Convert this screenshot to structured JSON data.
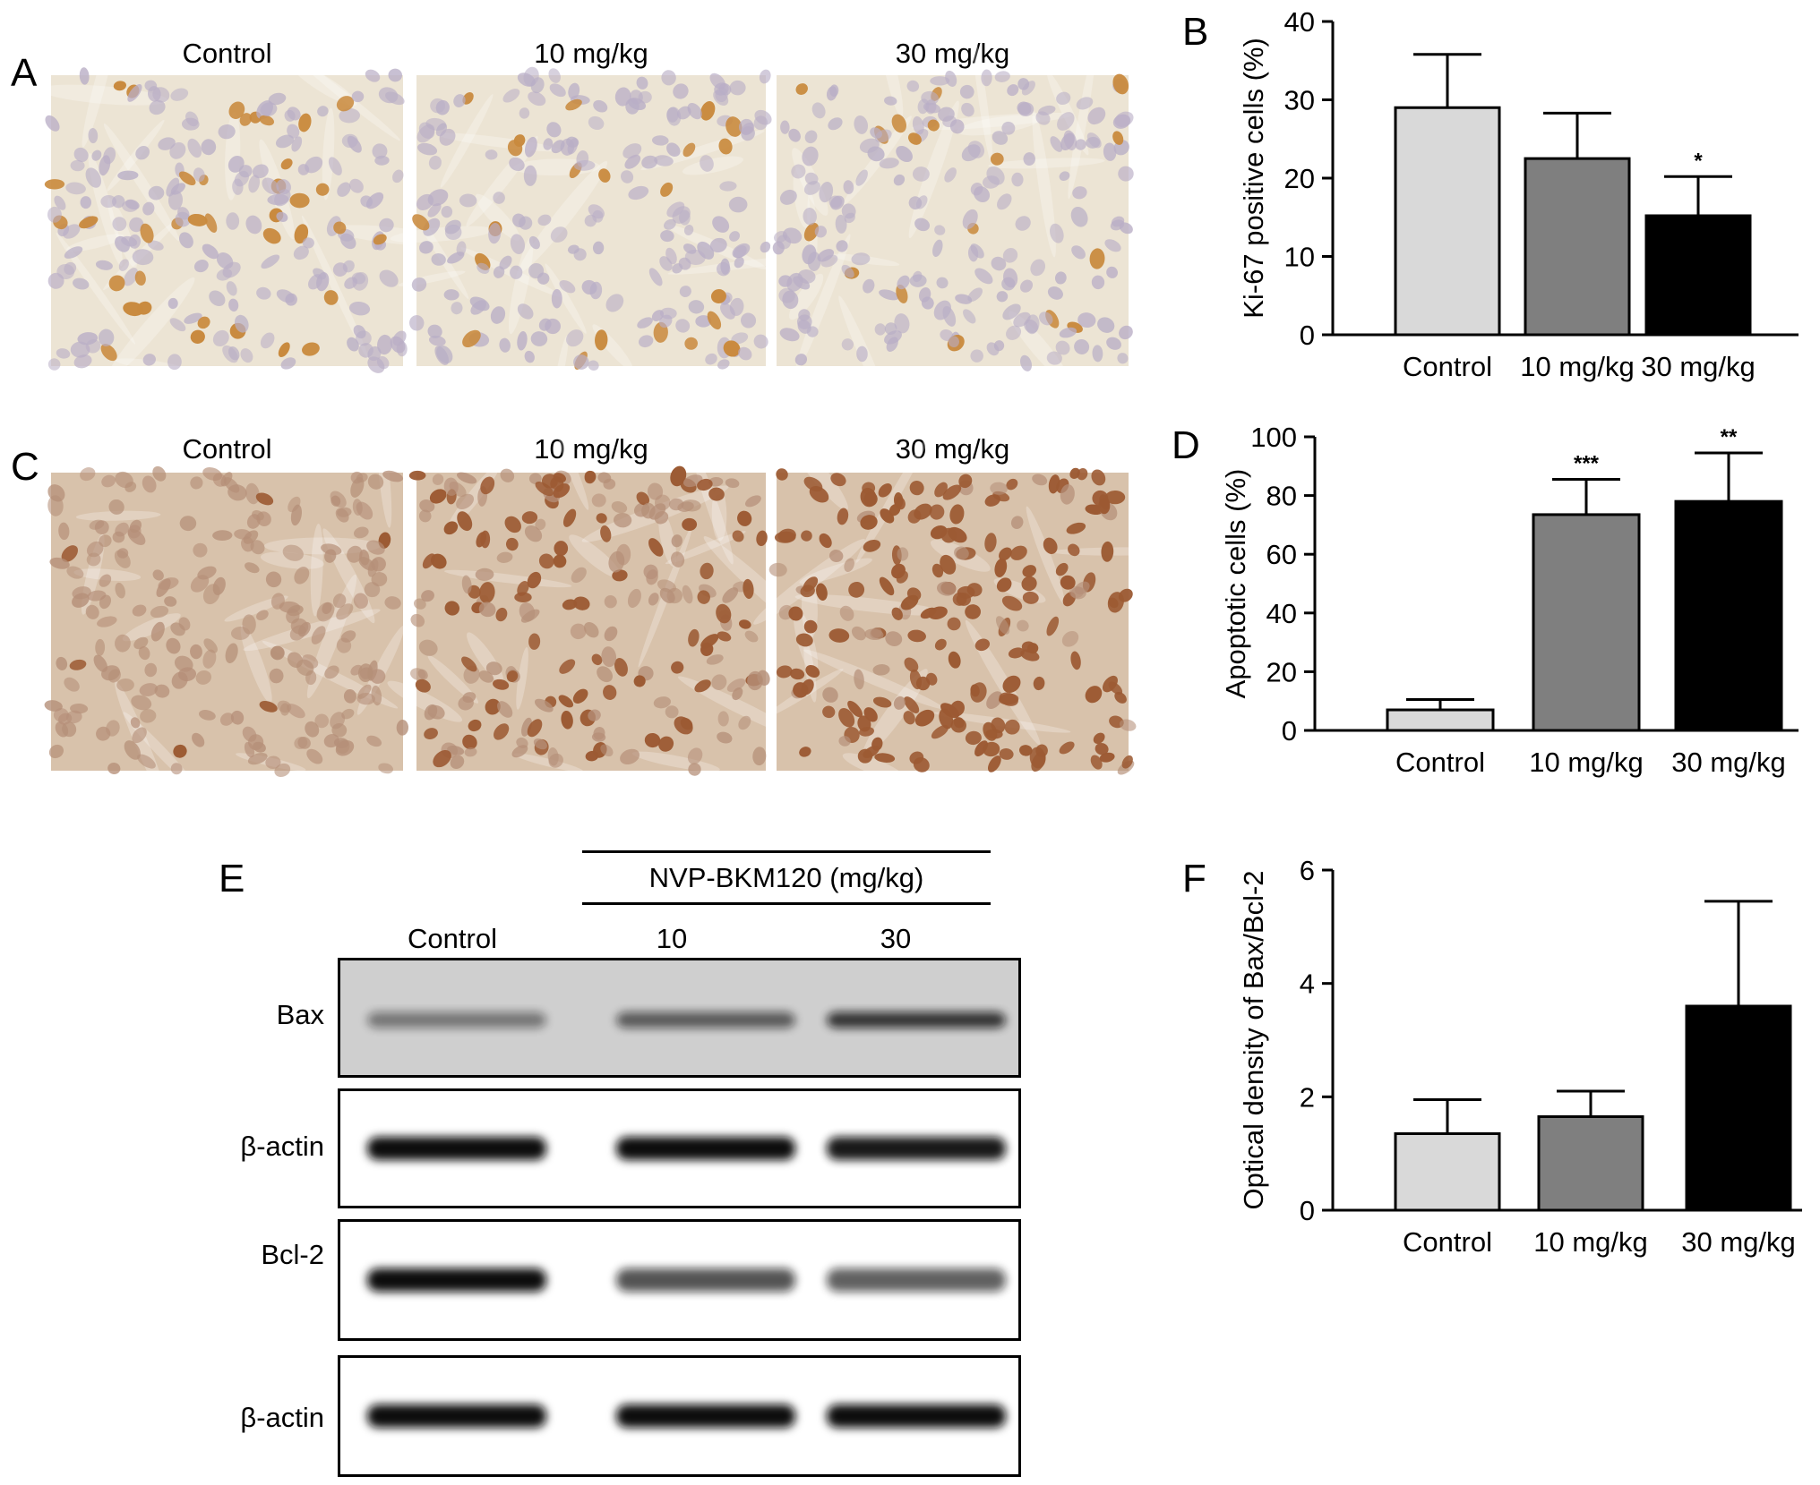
{
  "panels": {
    "A": {
      "letter": "A",
      "captions": [
        "Control",
        "10 mg/kg",
        "30 mg/kg"
      ]
    },
    "C": {
      "letter": "C",
      "captions": [
        "Control",
        "10 mg/kg",
        "30 mg/kg"
      ]
    },
    "E": {
      "letter": "E",
      "treatment_label": "NVP-BKM120 (mg/kg)",
      "lanes": [
        "Control",
        "10",
        "30"
      ],
      "rows": [
        {
          "label": "Bax",
          "bands": [
            0.45,
            0.6,
            0.8
          ]
        },
        {
          "label": "β-actin",
          "bands": [
            1,
            1,
            0.95
          ]
        },
        {
          "label": "Bcl-2",
          "bands": [
            1,
            0.7,
            0.65
          ]
        },
        {
          "label": "β-actin",
          "bands": [
            1,
            1,
            1
          ]
        }
      ]
    }
  },
  "micro_colors": {
    "A_bg": "#ece4d4",
    "A_nuc": "#b9aec6",
    "A_pos": "#c98a3e",
    "C_bg": "#d8c2ab",
    "C_nuc": "#b58f78",
    "C_pos": "#9c5a33"
  },
  "bar_colors": [
    "#d9d9d9",
    "#7f7f7f",
    "#000000"
  ],
  "chart_data": [
    {
      "id": "B",
      "letter": "B",
      "type": "bar",
      "categories": [
        "Control",
        "10 mg/kg",
        "30 mg/kg"
      ],
      "values": [
        29,
        22.5,
        15.2
      ],
      "errors": [
        6.8,
        5.8,
        5
      ],
      "significance": [
        "",
        "",
        "*"
      ],
      "ylabel": "Ki-67 positive cells (%)",
      "ylim": [
        0,
        40
      ],
      "yticks": [
        0,
        10,
        20,
        30,
        40
      ]
    },
    {
      "id": "D",
      "letter": "D",
      "type": "bar",
      "categories": [
        "Control",
        "10 mg/kg",
        "30 mg/kg"
      ],
      "values": [
        7,
        73.5,
        78
      ],
      "errors": [
        3.5,
        12,
        16.5
      ],
      "significance": [
        "",
        "***",
        "**"
      ],
      "ylabel": "Apoptotic cells (%)",
      "ylim": [
        0,
        100
      ],
      "yticks": [
        0,
        20,
        40,
        60,
        80,
        100
      ]
    },
    {
      "id": "F",
      "letter": "F",
      "type": "bar",
      "categories": [
        "Control",
        "10 mg/kg",
        "30 mg/kg"
      ],
      "values": [
        1.35,
        1.65,
        3.6
      ],
      "errors": [
        0.6,
        0.45,
        1.85
      ],
      "significance": [
        "",
        "",
        ""
      ],
      "ylabel": "Optical density of Bax/Bcl-2",
      "ylim": [
        0,
        6
      ],
      "yticks": [
        0,
        2,
        4,
        6
      ]
    }
  ]
}
